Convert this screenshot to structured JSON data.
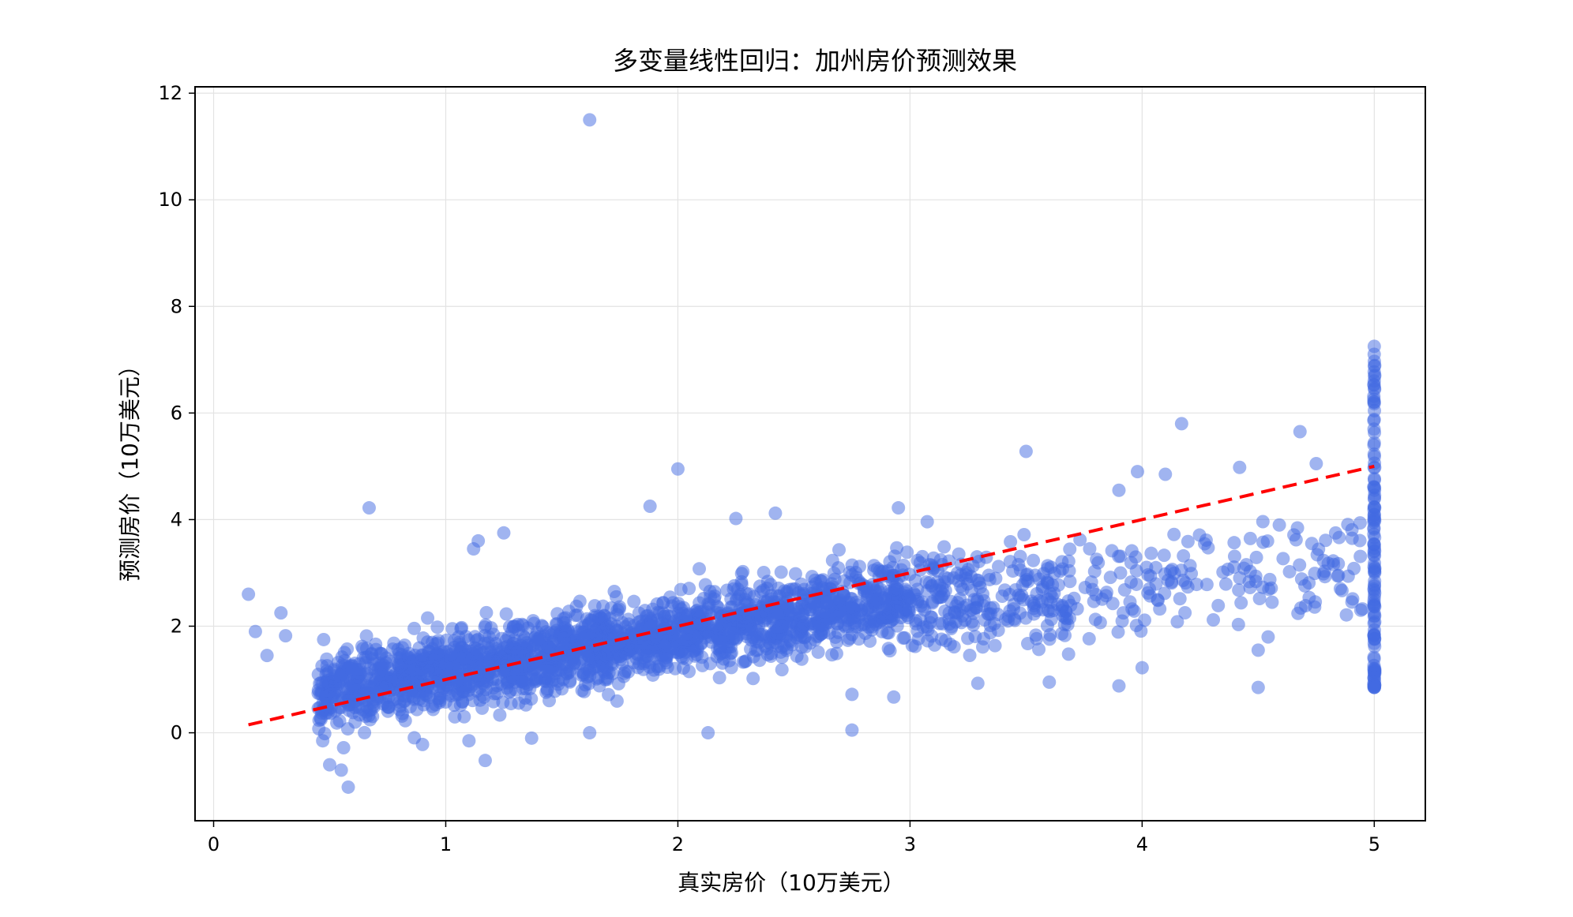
{
  "chart_data": {
    "type": "scatter",
    "title": "多变量线性回归：加州房价预测效果",
    "xlabel": "真实房价（10万美元）",
    "ylabel": "预测房价（10万美元）",
    "xlim": [
      -0.08,
      5.22
    ],
    "ylim": [
      -1.65,
      12.12
    ],
    "xticks": [
      "0",
      "1",
      "2",
      "3",
      "4",
      "5"
    ],
    "yticks": [
      "0",
      "2",
      "4",
      "6",
      "8",
      "10",
      "12"
    ],
    "grid": true,
    "point_color": "#4169e1",
    "point_opacity": 0.5,
    "reference_line": {
      "style": "dashed",
      "color": "#ff0000",
      "from": [
        0.15,
        0.15
      ],
      "to": [
        5.0,
        5.0
      ]
    },
    "outliers": [
      {
        "x": 1.62,
        "y": 11.5
      },
      {
        "x": 0.15,
        "y": 2.6
      },
      {
        "x": 0.18,
        "y": 1.9
      },
      {
        "x": 0.23,
        "y": 1.45
      },
      {
        "x": 0.29,
        "y": 2.25
      },
      {
        "x": 0.31,
        "y": 1.82
      },
      {
        "x": 0.67,
        "y": 4.22
      },
      {
        "x": 1.12,
        "y": 3.45
      },
      {
        "x": 1.14,
        "y": 3.6
      },
      {
        "x": 1.25,
        "y": 3.75
      },
      {
        "x": 1.88,
        "y": 4.25
      },
      {
        "x": 2.0,
        "y": 4.95
      },
      {
        "x": 2.25,
        "y": 4.02
      },
      {
        "x": 2.42,
        "y": 4.12
      },
      {
        "x": 2.95,
        "y": 4.22
      },
      {
        "x": 3.5,
        "y": 5.28
      },
      {
        "x": 3.9,
        "y": 4.55
      },
      {
        "x": 3.98,
        "y": 4.9
      },
      {
        "x": 4.1,
        "y": 4.85
      },
      {
        "x": 4.17,
        "y": 5.8
      },
      {
        "x": 4.42,
        "y": 4.98
      },
      {
        "x": 4.68,
        "y": 5.65
      },
      {
        "x": 4.75,
        "y": 5.05
      },
      {
        "x": 0.58,
        "y": -1.02
      },
      {
        "x": 0.55,
        "y": -0.7
      },
      {
        "x": 0.5,
        "y": -0.6
      },
      {
        "x": 0.47,
        "y": -0.15
      },
      {
        "x": 0.56,
        "y": -0.28
      },
      {
        "x": 0.9,
        "y": -0.22
      },
      {
        "x": 1.17,
        "y": -0.52
      },
      {
        "x": 1.1,
        "y": -0.15
      },
      {
        "x": 1.37,
        "y": -0.1
      },
      {
        "x": 1.62,
        "y": 0.0
      },
      {
        "x": 2.13,
        "y": 0.0
      },
      {
        "x": 2.75,
        "y": 0.05
      },
      {
        "x": 2.75,
        "y": 0.72
      },
      {
        "x": 2.93,
        "y": 0.67
      },
      {
        "x": 3.6,
        "y": 0.95
      },
      {
        "x": 3.9,
        "y": 0.88
      },
      {
        "x": 4.0,
        "y": 1.22
      },
      {
        "x": 4.5,
        "y": 0.85
      },
      {
        "x": 4.5,
        "y": 1.55
      }
    ],
    "capped_column": {
      "x": 5.0,
      "ymin": 0.85,
      "ymax": 7.25
    }
  }
}
